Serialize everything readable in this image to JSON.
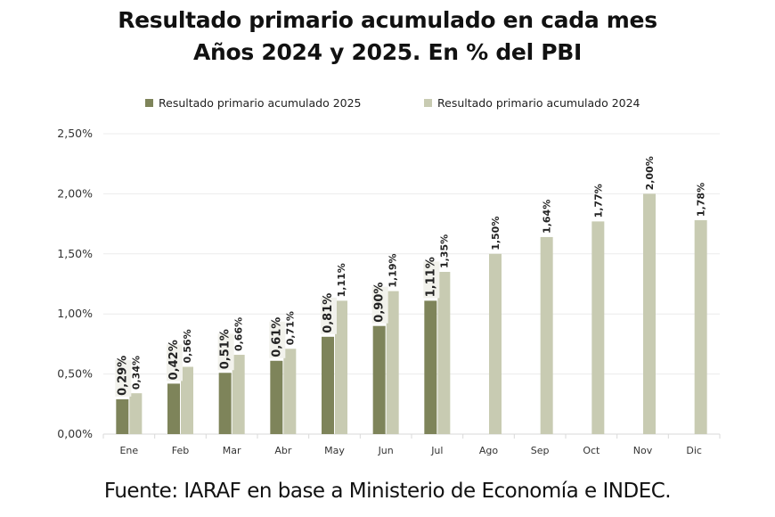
{
  "title_line1": "Resultado primario acumulado en cada mes",
  "title_line2": "Años 2024 y 2025. En % del PBI",
  "footer": "Fuente: IARAF en base a Ministerio de Economía e INDEC.",
  "colors": {
    "series_2025": "#7e845a",
    "series_2024": "#c8cbb2",
    "label_bg": "#f2f2ec",
    "grid": "#ececec"
  },
  "chart_data": {
    "type": "bar",
    "title": "Resultado primario acumulado en cada mes — Años 2024 y 2025. En % del PBI",
    "xlabel": "",
    "ylabel": "",
    "ylim": [
      0,
      2.5
    ],
    "yticks": [
      0,
      0.5,
      1.0,
      1.5,
      2.0,
      2.5
    ],
    "ytick_labels": [
      "0,00%",
      "0,50%",
      "1,00%",
      "1,50%",
      "2,00%",
      "2,50%"
    ],
    "grid": true,
    "legend_position": "top",
    "categories": [
      "Ene",
      "Feb",
      "Mar",
      "Abr",
      "May",
      "Jun",
      "Jul",
      "Ago",
      "Sep",
      "Oct",
      "Nov",
      "Dic"
    ],
    "series": [
      {
        "name": "Resultado primario acumulado 2025",
        "values": [
          0.29,
          0.42,
          0.51,
          0.61,
          0.81,
          0.9,
          1.11,
          null,
          null,
          null,
          null,
          null
        ],
        "labels": [
          "0,29%",
          "0,42%",
          "0,51%",
          "0,61%",
          "0,81%",
          "0,90%",
          "1,11%",
          null,
          null,
          null,
          null,
          null
        ]
      },
      {
        "name": "Resultado primario acumulado 2024",
        "values": [
          0.34,
          0.56,
          0.66,
          0.71,
          1.11,
          1.19,
          1.35,
          1.5,
          1.64,
          1.77,
          2.0,
          1.78
        ],
        "labels": [
          "0,34%",
          "0,56%",
          "0,66%",
          "0,71%",
          "1,11%",
          "1,19%",
          "1,35%",
          "1,50%",
          "1,64%",
          "1,77%",
          "2,00%",
          "1,78%"
        ]
      }
    ]
  }
}
